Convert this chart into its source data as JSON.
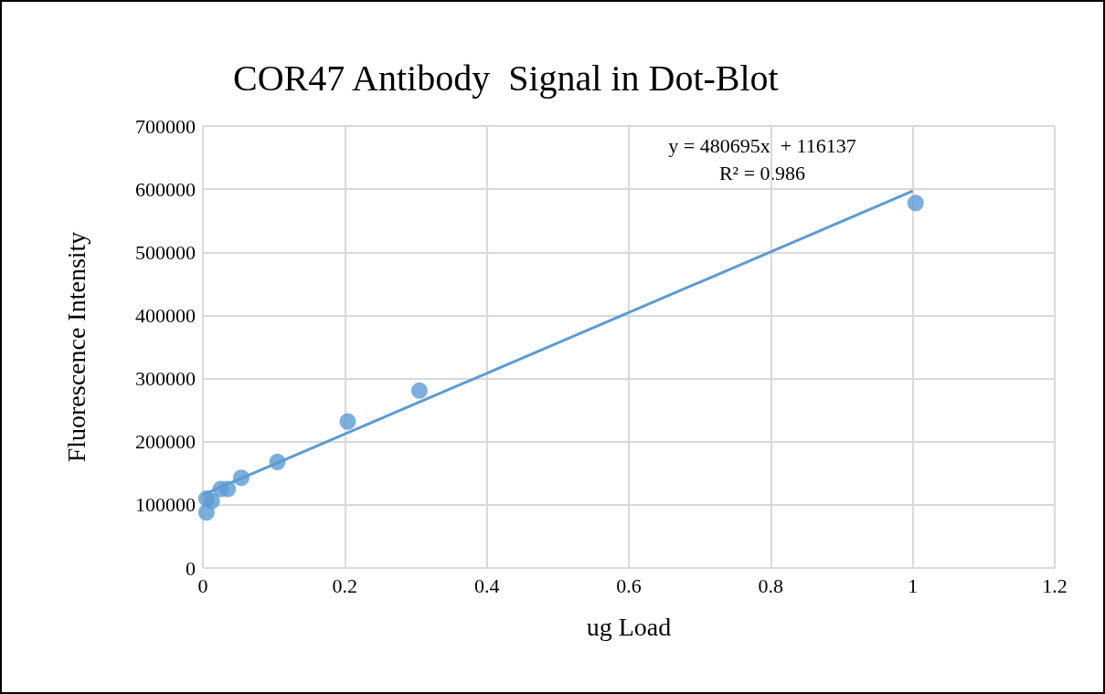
{
  "chart_data": {
    "type": "scatter",
    "title": "COR47 Antibody  Signal in Dot-Blot",
    "xlabel": "ug Load",
    "ylabel": "Fluorescence Intensity",
    "series": [
      {
        "color": "#5b9bd5",
        "x": [
          0.005,
          0.005,
          0.0125,
          0.025,
          0.035,
          0.054,
          0.105,
          0.204,
          0.305,
          1.004
        ],
        "values": [
          110000,
          88000,
          106000,
          125000,
          125000,
          143000,
          168000,
          232000,
          281000,
          578000
        ]
      },
      {
        "type": "line",
        "color": "#5b9bd5",
        "marker": "none",
        "x": [
          0,
          1
        ],
        "values": [
          116000,
          597000
        ]
      }
    ],
    "annotations": [
      "y = 480695x  + 116137",
      "R² = 0.986"
    ],
    "xlim": [
      0,
      1.2
    ],
    "xticks": [
      0,
      0.2,
      0.4,
      0.6,
      0.8,
      1,
      1.2
    ],
    "ylim": [
      0,
      700000
    ],
    "yticks": [
      0,
      100000,
      200000,
      300000,
      400000,
      500000,
      600000,
      700000
    ],
    "grid": true,
    "marker": "circle",
    "line_style": "solid"
  }
}
